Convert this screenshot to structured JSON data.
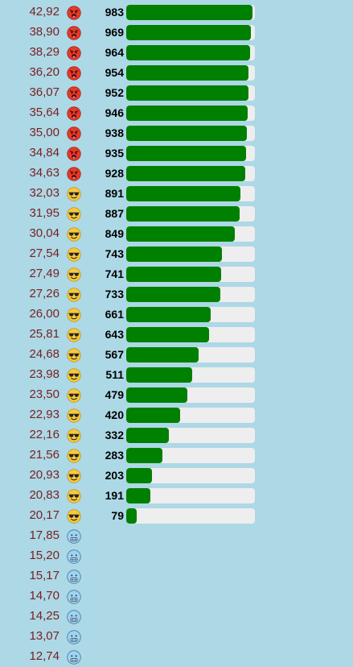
{
  "colors": {
    "background": "#add8e6",
    "temperature_text": "#7a1f1f",
    "bar_fill": "#008000",
    "bar_track": "#eeeeee",
    "count_text": "#000000"
  },
  "bar_max": 983,
  "rows": [
    {
      "temp": "42,92",
      "icon": "hot-face-icon",
      "count": "983",
      "value": 983
    },
    {
      "temp": "38,90",
      "icon": "hot-face-icon",
      "count": "969",
      "value": 969
    },
    {
      "temp": "38,29",
      "icon": "hot-face-icon",
      "count": "964",
      "value": 964
    },
    {
      "temp": "36,20",
      "icon": "hot-face-icon",
      "count": "954",
      "value": 954
    },
    {
      "temp": "36,07",
      "icon": "hot-face-icon",
      "count": "952",
      "value": 952
    },
    {
      "temp": "35,64",
      "icon": "hot-face-icon",
      "count": "946",
      "value": 946
    },
    {
      "temp": "35,00",
      "icon": "hot-face-icon",
      "count": "938",
      "value": 938
    },
    {
      "temp": "34,84",
      "icon": "hot-face-icon",
      "count": "935",
      "value": 935
    },
    {
      "temp": "34,63",
      "icon": "hot-face-icon",
      "count": "928",
      "value": 928
    },
    {
      "temp": "32,03",
      "icon": "sunglasses-face-icon",
      "count": "891",
      "value": 891
    },
    {
      "temp": "31,95",
      "icon": "sunglasses-face-icon",
      "count": "887",
      "value": 887
    },
    {
      "temp": "30,04",
      "icon": "sunglasses-face-icon",
      "count": "849",
      "value": 849
    },
    {
      "temp": "27,54",
      "icon": "sunglasses-face-icon",
      "count": "743",
      "value": 743
    },
    {
      "temp": "27,49",
      "icon": "sunglasses-face-icon",
      "count": "741",
      "value": 741
    },
    {
      "temp": "27,26",
      "icon": "sunglasses-face-icon",
      "count": "733",
      "value": 733
    },
    {
      "temp": "26,00",
      "icon": "sunglasses-face-icon",
      "count": "661",
      "value": 661
    },
    {
      "temp": "25,81",
      "icon": "sunglasses-face-icon",
      "count": "643",
      "value": 643
    },
    {
      "temp": "24,68",
      "icon": "sunglasses-face-icon",
      "count": "567",
      "value": 567
    },
    {
      "temp": "23,98",
      "icon": "sunglasses-face-icon",
      "count": "511",
      "value": 511
    },
    {
      "temp": "23,50",
      "icon": "sunglasses-face-icon",
      "count": "479",
      "value": 479
    },
    {
      "temp": "22,93",
      "icon": "sunglasses-face-icon",
      "count": "420",
      "value": 420
    },
    {
      "temp": "22,16",
      "icon": "sunglasses-face-icon",
      "count": "332",
      "value": 332
    },
    {
      "temp": "21,56",
      "icon": "sunglasses-face-icon",
      "count": "283",
      "value": 283
    },
    {
      "temp": "20,93",
      "icon": "sunglasses-face-icon",
      "count": "203",
      "value": 203
    },
    {
      "temp": "20,83",
      "icon": "sunglasses-face-icon",
      "count": "191",
      "value": 191
    },
    {
      "temp": "20,17",
      "icon": "sunglasses-face-icon",
      "count": "79",
      "value": 79
    },
    {
      "temp": "17,85",
      "icon": "cold-face-icon"
    },
    {
      "temp": "15,20",
      "icon": "cold-face-icon"
    },
    {
      "temp": "15,17",
      "icon": "cold-face-icon"
    },
    {
      "temp": "14,70",
      "icon": "cold-face-icon"
    },
    {
      "temp": "14,25",
      "icon": "cold-face-icon"
    },
    {
      "temp": "13,07",
      "icon": "cold-face-icon"
    },
    {
      "temp": "12,74",
      "icon": "cold-face-icon"
    }
  ]
}
